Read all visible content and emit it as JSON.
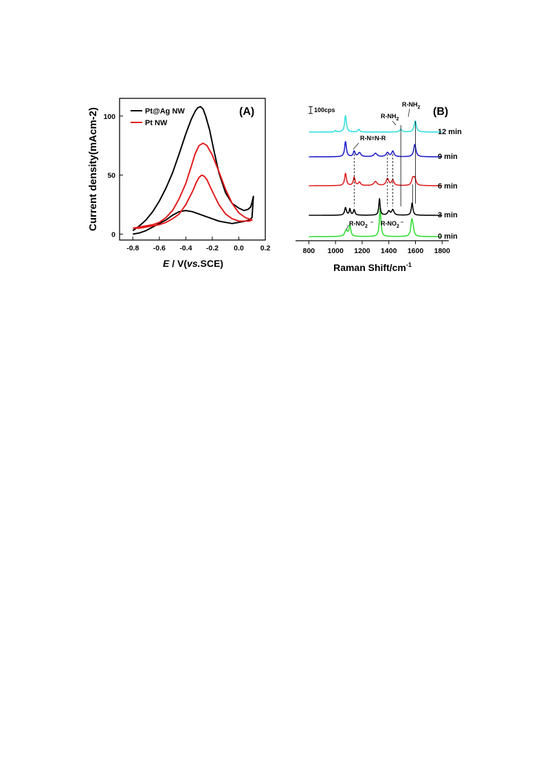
{
  "chart_data": [
    {
      "type": "line",
      "panel_label": "(A)",
      "xlabel_italic": "E",
      "xlabel_mid": " / V(",
      "xlabel_vs": "vs.",
      "xlabel_tail": "SCE)",
      "ylabel": "Current density(mAcm-2)",
      "xlim": [
        -0.9,
        0.2
      ],
      "ylim": [
        -5,
        115
      ],
      "xticks": [
        "-0.8",
        "-0.6",
        "-0.4",
        "-0.2",
        "0.0",
        "0.2"
      ],
      "yticks": [
        "0",
        "50",
        "100"
      ],
      "legend_position": "top-left",
      "grid": false,
      "series": [
        {
          "name": "Pt@Ag NW",
          "color": "#000000",
          "forward_x": [
            -0.8,
            -0.75,
            -0.7,
            -0.65,
            -0.6,
            -0.55,
            -0.5,
            -0.45,
            -0.4,
            -0.36,
            -0.33,
            -0.31,
            -0.29,
            -0.27,
            -0.25,
            -0.22,
            -0.19,
            -0.15,
            -0.1,
            -0.05,
            0.0,
            0.04,
            0.07,
            0.09,
            0.1,
            0.11
          ],
          "forward_y": [
            3,
            7,
            12,
            19,
            28,
            39,
            52,
            68,
            85,
            97,
            104,
            107,
            108,
            106,
            100,
            88,
            72,
            52,
            35,
            26,
            22,
            20,
            21,
            23,
            27,
            32
          ],
          "reverse_x": [
            0.11,
            0.1,
            0.08,
            0.05,
            0.0,
            -0.05,
            -0.1,
            -0.15,
            -0.2,
            -0.25,
            -0.3,
            -0.35,
            -0.4,
            -0.45,
            -0.5,
            -0.55,
            -0.6,
            -0.65,
            -0.7,
            -0.75,
            -0.8
          ],
          "reverse_y": [
            32,
            14,
            12,
            11,
            10,
            9,
            10,
            11,
            13,
            15,
            17,
            19,
            20,
            19,
            16,
            12,
            9,
            6,
            3,
            1,
            0
          ]
        },
        {
          "name": "Pt NW",
          "color": "#e41a1c",
          "forward_x": [
            -0.8,
            -0.75,
            -0.7,
            -0.65,
            -0.6,
            -0.55,
            -0.5,
            -0.45,
            -0.4,
            -0.35,
            -0.32,
            -0.3,
            -0.28,
            -0.26,
            -0.24,
            -0.22,
            -0.19,
            -0.15,
            -0.1,
            -0.05,
            0.0,
            0.05,
            0.08,
            0.1
          ],
          "forward_y": [
            5,
            5,
            6,
            7,
            8,
            10,
            13,
            17,
            25,
            36,
            44,
            48,
            50,
            49,
            46,
            41,
            34,
            25,
            17,
            13,
            11,
            11,
            11,
            12
          ],
          "reverse_x": [
            0.1,
            0.05,
            0.0,
            -0.05,
            -0.1,
            -0.15,
            -0.2,
            -0.24,
            -0.27,
            -0.3,
            -0.33,
            -0.36,
            -0.4,
            -0.45,
            -0.5,
            -0.55,
            -0.6,
            -0.65,
            -0.7,
            -0.75,
            -0.8
          ],
          "reverse_y": [
            12,
            14,
            18,
            26,
            38,
            53,
            67,
            75,
            77,
            75,
            68,
            57,
            43,
            30,
            20,
            14,
            10,
            8,
            7,
            6,
            5
          ]
        }
      ]
    },
    {
      "type": "line",
      "panel_label": "(B)",
      "xlabel": "Raman Shift/cm",
      "xlabel_sup": "-1",
      "xlim": [
        700,
        1850
      ],
      "xticks": [
        "800",
        "1000",
        "1200",
        "1400",
        "1600",
        "1800"
      ],
      "scale_bar_label": "100cps",
      "grid": false,
      "series": [
        {
          "name": "0 min",
          "color": "#33dd33",
          "peaks": [
            [
              1080,
              9,
              12
            ],
            [
              1108,
              16,
              8
            ],
            [
              1335,
              42,
              7
            ],
            [
              1572,
              22,
              8
            ],
            [
              1582,
              10,
              8
            ]
          ]
        },
        {
          "name": "3 min",
          "color": "#000000",
          "peaks": [
            [
              1075,
              11,
              8
            ],
            [
              1108,
              9,
              6
            ],
            [
              1140,
              8,
              7
            ],
            [
              1330,
              24,
              6
            ],
            [
              1400,
              6,
              10
            ],
            [
              1430,
              8,
              10
            ],
            [
              1575,
              18,
              7
            ]
          ]
        },
        {
          "name": "6 min",
          "color": "#dd2222",
          "peaks": [
            [
              1075,
              18,
              8
            ],
            [
              1140,
              12,
              8
            ],
            [
              1180,
              5,
              10
            ],
            [
              1300,
              6,
              14
            ],
            [
              1390,
              10,
              12
            ],
            [
              1430,
              8,
              10
            ],
            [
              1580,
              10,
              10
            ],
            [
              1595,
              10,
              10
            ]
          ]
        },
        {
          "name": "9 min",
          "color": "#1f1fcc",
          "peaks": [
            [
              1075,
              22,
              8
            ],
            [
              1140,
              8,
              8
            ],
            [
              1180,
              6,
              12
            ],
            [
              1300,
              5,
              14
            ],
            [
              1390,
              6,
              12
            ],
            [
              1430,
              8,
              10
            ],
            [
              1595,
              18,
              10
            ]
          ]
        },
        {
          "name": "12 min",
          "color": "#33dddd",
          "peaks": [
            [
              1000,
              2,
              6
            ],
            [
              1075,
              24,
              8
            ],
            [
              1175,
              4,
              8
            ],
            [
              1490,
              4,
              10
            ],
            [
              1598,
              16,
              10
            ]
          ]
        }
      ],
      "annotations": [
        {
          "text": "R-NH2",
          "base": "R-NH",
          "sub": "2"
        },
        {
          "text": "R-NH2",
          "base": "R-NH",
          "sub": "2"
        },
        {
          "text": "R-N=N-R",
          "base": "R-N=N-R",
          "sub": ""
        },
        {
          "text": "R-NO2",
          "base": "R-NO",
          "sub": "2"
        },
        {
          "text": "R-NO2",
          "base": "R-NO",
          "sub": "2"
        }
      ]
    }
  ]
}
